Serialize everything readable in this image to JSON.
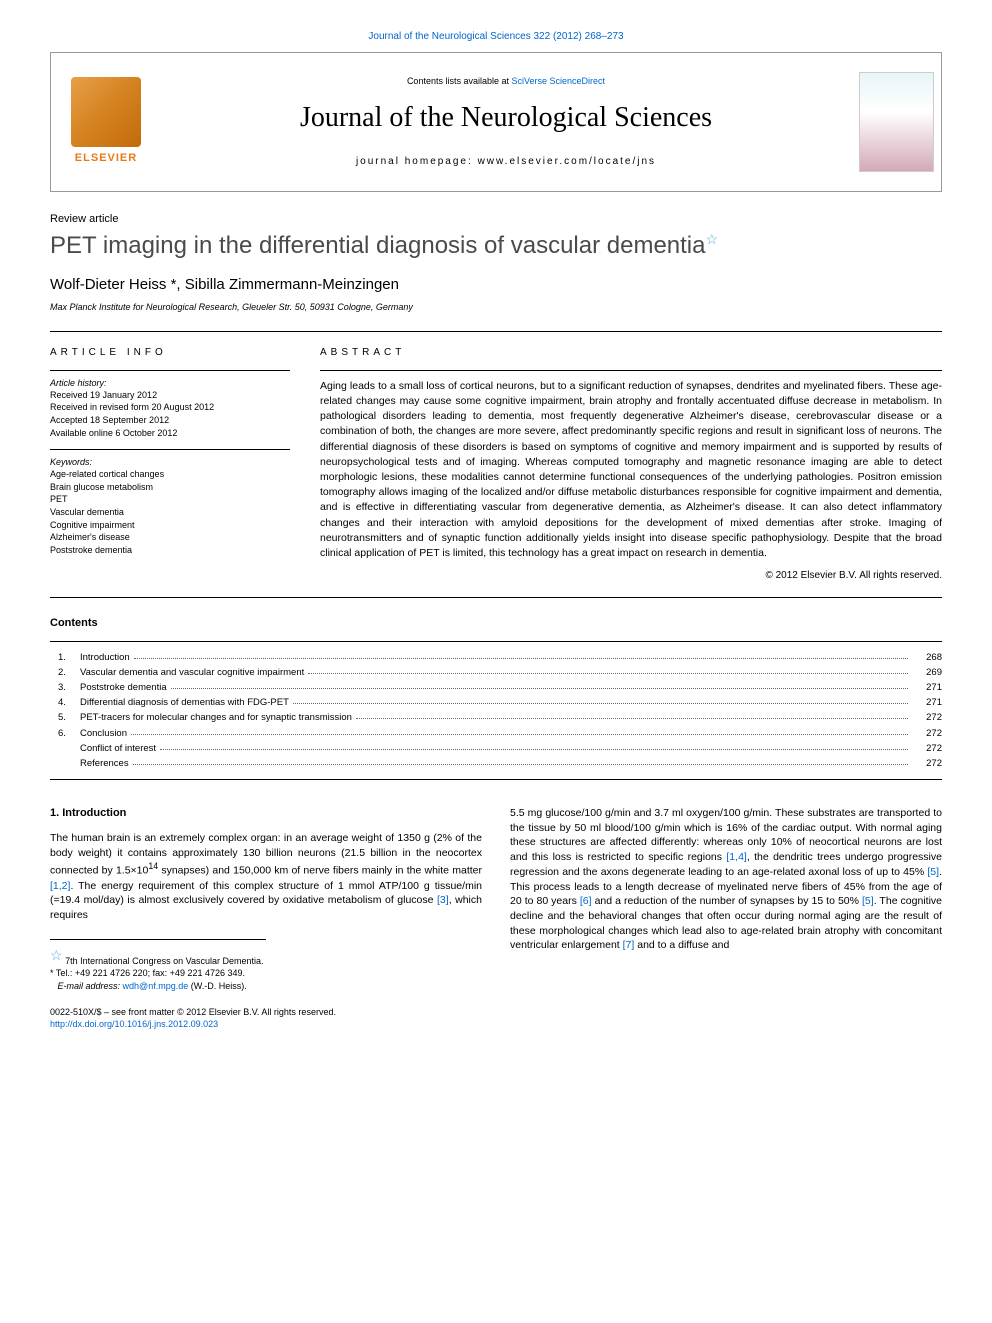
{
  "top_link": "Journal of the Neurological Sciences 322 (2012) 268–273",
  "header": {
    "contents_prefix": "Contents lists available at ",
    "contents_link": "SciVerse ScienceDirect",
    "journal_name": "Journal of the Neurological Sciences",
    "homepage_label": "journal homepage: ",
    "homepage_url": "www.elsevier.com/locate/jns",
    "publisher": "ELSEVIER"
  },
  "article": {
    "type": "Review article",
    "title": "PET imaging in the differential diagnosis of vascular dementia",
    "authors": "Wolf-Dieter Heiss *, Sibilla Zimmermann-Meinzingen",
    "affiliation": "Max Planck Institute for Neurological Research, Gleueler Str. 50, 50931 Cologne, Germany"
  },
  "info": {
    "section_head": "ARTICLE INFO",
    "history_label": "Article history:",
    "history": [
      "Received 19 January 2012",
      "Received in revised form 20 August 2012",
      "Accepted 18 September 2012",
      "Available online 6 October 2012"
    ],
    "keywords_label": "Keywords:",
    "keywords": [
      "Age-related cortical changes",
      "Brain glucose metabolism",
      "PET",
      "Vascular dementia",
      "Cognitive impairment",
      "Alzheimer's disease",
      "Poststroke dementia"
    ]
  },
  "abstract": {
    "section_head": "ABSTRACT",
    "text": "Aging leads to a small loss of cortical neurons, but to a significant reduction of synapses, dendrites and myelinated fibers. These age-related changes may cause some cognitive impairment, brain atrophy and frontally accentuated diffuse decrease in metabolism. In pathological disorders leading to dementia, most frequently degenerative Alzheimer's disease, cerebrovascular disease or a combination of both, the changes are more severe, affect predominantly specific regions and result in significant loss of neurons. The differential diagnosis of these disorders is based on symptoms of cognitive and memory impairment and is supported by results of neuropsychological tests and of imaging. Whereas computed tomography and magnetic resonance imaging are able to detect morphologic lesions, these modalities cannot determine functional consequences of the underlying pathologies. Positron emission tomography allows imaging of the localized and/or diffuse metabolic disturbances responsible for cognitive impairment and dementia, and is effective in differentiating vascular from degenerative dementia, as Alzheimer's disease. It can also detect inflammatory changes and their interaction with amyloid depositions for the development of mixed dementias after stroke. Imaging of neurotransmitters and of synaptic function additionally yields insight into disease specific pathophysiology. Despite that the broad clinical application of PET is limited, this technology has a great impact on research in dementia.",
    "copyright": "© 2012 Elsevier B.V. All rights reserved."
  },
  "contents": {
    "heading": "Contents",
    "items": [
      {
        "num": "1.",
        "title": "Introduction",
        "page": "268"
      },
      {
        "num": "2.",
        "title": "Vascular dementia and vascular cognitive impairment",
        "page": "269"
      },
      {
        "num": "3.",
        "title": "Poststroke dementia",
        "page": "271"
      },
      {
        "num": "4.",
        "title": "Differential diagnosis of dementias with FDG-PET",
        "page": "271"
      },
      {
        "num": "5.",
        "title": "PET-tracers for molecular changes and for synaptic transmission",
        "page": "272"
      },
      {
        "num": "6.",
        "title": "Conclusion",
        "page": "272"
      },
      {
        "num": "",
        "title": "Conflict of interest",
        "page": "272"
      },
      {
        "num": "",
        "title": "References",
        "page": "272"
      }
    ]
  },
  "body": {
    "heading": "1. Introduction",
    "col1_p1a": "The human brain is an extremely complex organ: in an average weight of 1350 g (2% of the body weight) it contains approximately 130 billion neurons (21.5 billion in the neocortex connected by 1.5×10",
    "col1_p1_exp": "14",
    "col1_p1b": " synapses) and 150,000 km of nerve fibers mainly in the white matter ",
    "col1_ref1": "[1,2]",
    "col1_p1c": ". The energy requirement of this complex structure of 1 mmol ATP/100 g tissue/min (=19.4 mol/day) is almost exclusively covered by oxidative metabolism of glucose ",
    "col1_ref2": "[3]",
    "col1_p1d": ", which requires",
    "col2_p1a": "5.5 mg glucose/100 g/min and 3.7 ml oxygen/100 g/min. These substrates are transported to the tissue by 50 ml blood/100 g/min which is 16% of the cardiac output. With normal aging these structures are affected differently: whereas only 10% of neocortical neurons are lost and this loss is restricted to specific regions ",
    "col2_ref1": "[1,4]",
    "col2_p1b": ", the dendritic trees undergo progressive regression and the axons degenerate leading to an age-related axonal loss of up to 45% ",
    "col2_ref2": "[5]",
    "col2_p1c": ". This process leads to a length decrease of myelinated nerve fibers of 45% from the age of 20 to 80 years ",
    "col2_ref3": "[6]",
    "col2_p1d": " and a reduction of the number of synapses by 15 to 50% ",
    "col2_ref4": "[5]",
    "col2_p1e": ". The cognitive decline and the behavioral changes that often occur during normal aging are the result of these morphological changes which lead also to age-related brain atrophy with concomitant ventricular enlargement ",
    "col2_ref5": "[7]",
    "col2_p1f": " and to a diffuse and"
  },
  "footnotes": {
    "congress": "7th International Congress on Vascular Dementia.",
    "tel": "Tel.: +49 221 4726 220; fax: +49 221 4726 349.",
    "email_label": "E-mail address: ",
    "email": "wdh@nf.mpg.de",
    "email_suffix": " (W.-D. Heiss)."
  },
  "bottom": {
    "front_matter": "0022-510X/$ – see front matter © 2012 Elsevier B.V. All rights reserved.",
    "doi": "http://dx.doi.org/10.1016/j.jns.2012.09.023"
  },
  "colors": {
    "link": "#0066cc",
    "title_gray": "#4a4a4a",
    "elsevier_orange": "#e87a1a",
    "star_blue": "#5aa8d8"
  }
}
